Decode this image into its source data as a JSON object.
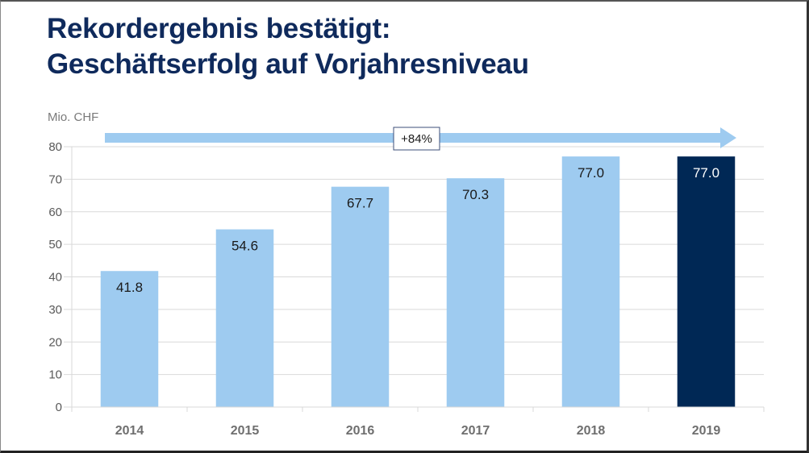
{
  "slide": {
    "title_line1": "Rekordergebnis bestätigt:",
    "title_line2": "Geschäftserfolg auf Vorjahresniveau"
  },
  "chart_data": {
    "type": "bar",
    "title": "Rekordergebnis bestätigt: Geschäftserfolg auf Vorjahresniveau",
    "unit_label": "Mio. CHF",
    "xlabel": "",
    "ylabel": "Mio. CHF",
    "categories": [
      "2014",
      "2015",
      "2016",
      "2017",
      "2018",
      "2019"
    ],
    "values": [
      41.8,
      54.6,
      67.7,
      70.3,
      77.0,
      77.0
    ],
    "value_labels": [
      "41.8",
      "54.6",
      "67.7",
      "70.3",
      "77.0",
      "77.0"
    ],
    "highlight_index": 5,
    "ylim": [
      0,
      80
    ],
    "yticks": [
      0,
      10,
      20,
      30,
      40,
      50,
      60,
      70,
      80
    ],
    "grid": true,
    "annotation": {
      "text": "+84%",
      "type": "growth-arrow",
      "from": "2014",
      "to": "2019"
    },
    "colors": {
      "bar": "#9ecbf0",
      "highlight_bar": "#002855",
      "arrow": "#9ecbf0",
      "grid": "#d9d9d9",
      "title": "#0f2a5c"
    }
  }
}
